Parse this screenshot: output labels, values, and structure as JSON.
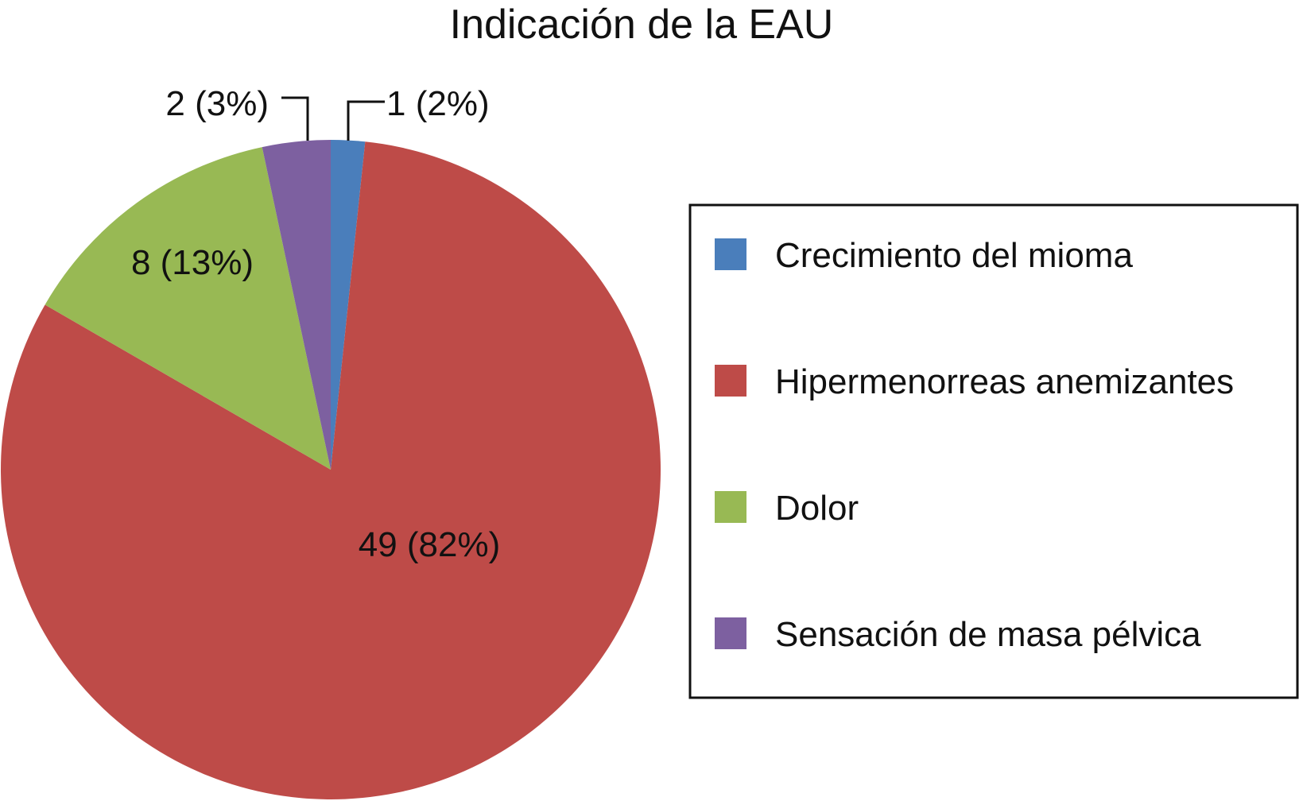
{
  "chart_data": {
    "type": "pie",
    "title": "Indicación de la EAU",
    "slices": [
      {
        "name": "Crecimiento del mioma",
        "value": 1,
        "percent": 2,
        "label": "1 (2%)",
        "color": "#4a7ebb"
      },
      {
        "name": "Hipermenorreas anemizantes",
        "value": 49,
        "percent": 82,
        "label": "49 (82%)",
        "color": "#be4b48"
      },
      {
        "name": "Dolor",
        "value": 8,
        "percent": 13,
        "label": "8 (13%)",
        "color": "#98b954"
      },
      {
        "name": "Sensación de masa pélvica",
        "value": 2,
        "percent": 3,
        "label": "2 (3%)",
        "color": "#7d60a0"
      }
    ],
    "start_angle": "12 o'clock",
    "direction": "clockwise",
    "legend_position": "right"
  }
}
